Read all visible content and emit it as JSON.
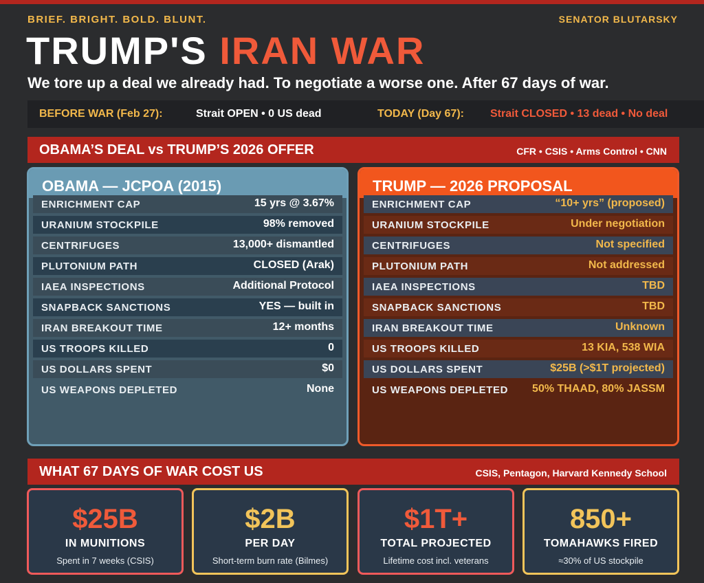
{
  "header": {
    "tagline": "BRIEF.  BRIGHT.  BOLD.  BLUNT.",
    "author": "SENATOR BLUTARSKY",
    "title_part1": "TRUMP'S ",
    "title_part2": "IRAN WAR",
    "subtitle": "We tore up a deal we already had. To negotiate a worse one. After 67 days of war."
  },
  "status": {
    "before_label": "BEFORE WAR (Feb 27):",
    "before_value": "Strait OPEN  •  0 US dead",
    "today_label": "TODAY (Day 67):",
    "today_value": "Strait CLOSED  •  13 dead  •  No deal"
  },
  "comparison": {
    "title": "OBAMA’S DEAL  vs  TRUMP’S 2026 OFFER",
    "sources": "CFR • CSIS • Arms Control • CNN",
    "obama": {
      "title": "OBAMA —  JCPOA (2015)",
      "rows": [
        {
          "label": "ENRICHMENT CAP",
          "value": "15 yrs @ 3.67%"
        },
        {
          "label": "URANIUM STOCKPILE",
          "value": "98%  removed"
        },
        {
          "label": "CENTRIFUGES",
          "value": "13,000+ dismantled"
        },
        {
          "label": "PLUTONIUM PATH",
          "value": "CLOSED (Arak)"
        },
        {
          "label": "IAEA INSPECTIONS",
          "value": "Additional Protocol"
        },
        {
          "label": "SNAPBACK SANCTIONS",
          "value": "YES —  built in"
        },
        {
          "label": "IRAN BREAKOUT TIME",
          "value": "12+ months"
        },
        {
          "label": "US TROOPS KILLED",
          "value": "0"
        },
        {
          "label": "US DOLLARS SPENT",
          "value": "$0"
        },
        {
          "label": "US WEAPONS DEPLETED",
          "value": "None"
        }
      ]
    },
    "trump": {
      "title": "TRUMP —  2026 PROPOSAL",
      "rows": [
        {
          "label": "ENRICHMENT CAP",
          "value": "“10+ yrs” (proposed)"
        },
        {
          "label": "URANIUM STOCKPILE",
          "value": "Under negotiation"
        },
        {
          "label": "CENTRIFUGES",
          "value": "Not specified"
        },
        {
          "label": "PLUTONIUM PATH",
          "value": "Not addressed"
        },
        {
          "label": "IAEA INSPECTIONS",
          "value": "TBD"
        },
        {
          "label": "SNAPBACK SANCTIONS",
          "value": "TBD"
        },
        {
          "label": "IRAN BREAKOUT TIME",
          "value": "Unknown"
        },
        {
          "label": "US TROOPS KILLED",
          "value": "13 KIA, 538 WIA"
        },
        {
          "label": "US DOLLARS SPENT",
          "value": "$25B (>$1T projected)"
        },
        {
          "label": "US WEAPONS DEPLETED",
          "value": "50%  THAAD, 80%  JASSM"
        }
      ]
    }
  },
  "costs": {
    "title": "WHAT 67 DAYS OF WAR COST US",
    "sources": "CSIS, Pentagon, Harvard Kennedy School",
    "cards": [
      {
        "big": "$25B",
        "label": "IN MUNITIONS",
        "sub": "Spent in 7 weeks (CSIS)"
      },
      {
        "big": "$2B",
        "label": "PER DAY",
        "sub": "Short-term burn rate (Bilmes)"
      },
      {
        "big": "$1T+",
        "label": "TOTAL PROJECTED",
        "sub": "Lifetime cost incl. veterans"
      },
      {
        "big": "850+",
        "label": "TOMAHAWKS FIRED",
        "sub": "≈30%  of US stockpile"
      }
    ]
  },
  "colors": {
    "background": "#2b2c2e",
    "accent_red": "#b3261e",
    "accent_orange": "#f05a3a",
    "accent_gold": "#f2b84b",
    "obama_blue": "#6a9bb3",
    "trump_orange": "#f2561d"
  }
}
